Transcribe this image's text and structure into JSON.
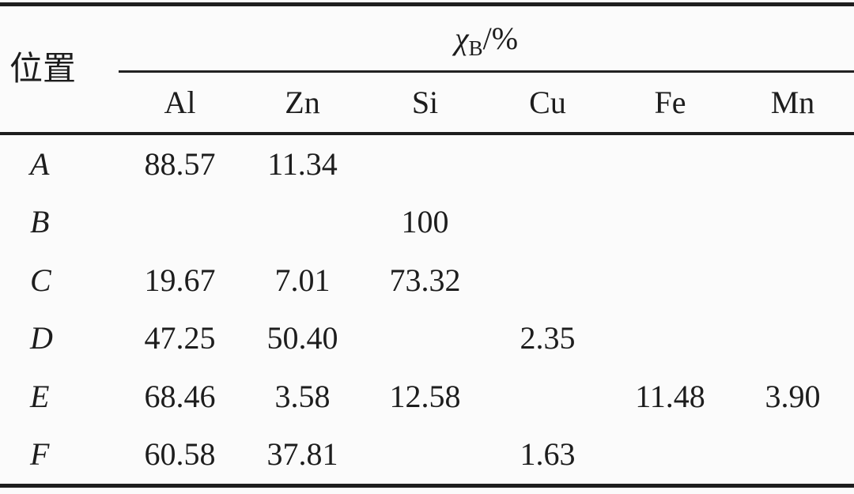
{
  "table": {
    "position_header": "位置",
    "group_header": {
      "symbol": "χ",
      "subscript": "B",
      "suffix": "/%"
    },
    "columns": [
      "Al",
      "Zn",
      "Si",
      "Cu",
      "Fe",
      "Mn"
    ],
    "rows": [
      {
        "position": "A",
        "values": [
          "88.57",
          "11.34",
          "",
          "",
          "",
          ""
        ]
      },
      {
        "position": "B",
        "values": [
          "",
          "",
          "100",
          "",
          "",
          ""
        ]
      },
      {
        "position": "C",
        "values": [
          "19.67",
          "7.01",
          "73.32",
          "",
          "",
          ""
        ]
      },
      {
        "position": "D",
        "values": [
          "47.25",
          "50.40",
          "",
          "2.35",
          "",
          ""
        ]
      },
      {
        "position": "E",
        "values": [
          "68.46",
          "3.58",
          "12.58",
          "",
          "11.48",
          "3.90"
        ]
      },
      {
        "position": "F",
        "values": [
          "60.58",
          "37.81",
          "",
          "1.63",
          "",
          ""
        ]
      }
    ]
  },
  "colors": {
    "background": "#fbfbfb",
    "text": "#1d1d1d",
    "rule": "#1e1e1e"
  },
  "chart_data": {
    "type": "table",
    "title": "χB/% composition by position",
    "row_header": "位置",
    "columns": [
      "Al",
      "Zn",
      "Si",
      "Cu",
      "Fe",
      "Mn"
    ],
    "rows": [
      {
        "position": "A",
        "Al": 88.57,
        "Zn": 11.34,
        "Si": null,
        "Cu": null,
        "Fe": null,
        "Mn": null
      },
      {
        "position": "B",
        "Al": null,
        "Zn": null,
        "Si": 100,
        "Cu": null,
        "Fe": null,
        "Mn": null
      },
      {
        "position": "C",
        "Al": 19.67,
        "Zn": 7.01,
        "Si": 73.32,
        "Cu": null,
        "Fe": null,
        "Mn": null
      },
      {
        "position": "D",
        "Al": 47.25,
        "Zn": 50.4,
        "Si": null,
        "Cu": 2.35,
        "Fe": null,
        "Mn": null
      },
      {
        "position": "E",
        "Al": 68.46,
        "Zn": 3.58,
        "Si": 12.58,
        "Cu": null,
        "Fe": 11.48,
        "Mn": 3.9
      },
      {
        "position": "F",
        "Al": 60.58,
        "Zn": 37.81,
        "Si": null,
        "Cu": 1.63,
        "Fe": null,
        "Mn": null
      }
    ]
  }
}
